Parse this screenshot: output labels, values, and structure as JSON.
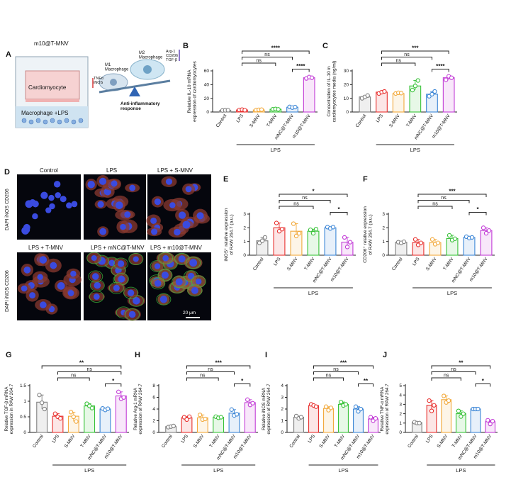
{
  "panel_letters": [
    "A",
    "B",
    "C",
    "D",
    "E",
    "F",
    "G",
    "H",
    "I",
    "J"
  ],
  "panel_a": {
    "title": "m10@T-MNV",
    "top_label": "Cardiomyocyte",
    "bottom_label": "Macrophage +LPS",
    "m1_label": "M1\nMacrophage",
    "m2_label": "M2\nMacrophage",
    "m1_markers": "TNFα\niNOS",
    "m2_markers": "Arg-1\nCD206\nTGF-β",
    "response": "Anti-inflammatory\nresponse"
  },
  "panel_d": {
    "top_titles": [
      "Control",
      "LPS",
      "LPS + S-MNV"
    ],
    "bottom_titles": [
      "LPS + T-MNV",
      "LPS + mNC@T-MNV",
      "LPS + m10@T-MNV"
    ],
    "stain_label": "DAPI iNOS CD206",
    "scale_bar": "20 μm"
  },
  "colors": {
    "Control": "#7f7f7f",
    "LPS": "#e8302e",
    "S-MNV": "#f2a93b",
    "T-MNV": "#37c237",
    "mNC@T-MNV": "#3c86d6",
    "m10@T-MNV": "#c23bd6"
  },
  "chart_data": [
    {
      "id": "B",
      "type": "bar",
      "categories": [
        "Control",
        "LPS",
        "S-MNV",
        "T-MNV",
        "mNC@T-MNV",
        "m10@T-MNV"
      ],
      "values": [
        2.5,
        3,
        3,
        4,
        7,
        50
      ],
      "points": [
        [
          2.3,
          2.5,
          2.6
        ],
        [
          3,
          3.5,
          2.6
        ],
        [
          2.8,
          3.2,
          3.5
        ],
        [
          4,
          4.5,
          3.8
        ],
        [
          7.5,
          6.5,
          7.2
        ],
        [
          49,
          51,
          50
        ]
      ],
      "ylabel": "Relative IL-10 mRNA\nexpression of cardiomyocytes",
      "ylim": [
        0,
        60
      ],
      "yticks": [
        0,
        20,
        40,
        60
      ],
      "group_label": "LPS",
      "brackets": [
        {
          "from": 1,
          "to": 5,
          "text": "****",
          "level": 0
        },
        {
          "from": 1,
          "to": 4,
          "text": "ns",
          "level": 1
        },
        {
          "from": 1,
          "to": 3,
          "text": "ns",
          "level": 2
        },
        {
          "from": 4,
          "to": 5,
          "text": "****",
          "level": 3
        }
      ]
    },
    {
      "id": "C",
      "type": "bar",
      "categories": [
        "Control",
        "LPS",
        "S-MNV",
        "T-MNV",
        "mNC@T-MNV",
        "m10@T-MNV"
      ],
      "values": [
        11,
        14.5,
        13.5,
        19,
        13,
        25
      ],
      "points": [
        [
          10,
          11,
          12
        ],
        [
          13.5,
          14.5,
          15
        ],
        [
          13.5,
          14,
          13.8
        ],
        [
          16,
          19,
          23
        ],
        [
          11.5,
          13,
          15
        ],
        [
          23.5,
          26,
          25
        ]
      ],
      "ylabel": "Concentration of IL-10 in\ncardiomyocytes media (ng/ml)",
      "ylim": [
        0,
        30
      ],
      "yticks": [
        0,
        10,
        20,
        30
      ],
      "group_label": "LPS",
      "brackets": [
        {
          "from": 1,
          "to": 5,
          "text": "***",
          "level": 0
        },
        {
          "from": 1,
          "to": 4,
          "text": "ns",
          "level": 1
        },
        {
          "from": 1,
          "to": 3,
          "text": "ns",
          "level": 2
        },
        {
          "from": 4,
          "to": 5,
          "text": "****",
          "level": 3
        }
      ]
    },
    {
      "id": "E",
      "type": "bar",
      "categories": [
        "Control",
        "LPS",
        "S-MNV",
        "T-MNV",
        "mNC@T-MNV",
        "m10@T-MNV"
      ],
      "values": [
        1.05,
        2.0,
        1.75,
        1.75,
        2.0,
        0.95
      ],
      "points": [
        [
          0.9,
          1.05,
          1.3
        ],
        [
          2.35,
          1.75,
          1.9
        ],
        [
          2.3,
          1.4,
          1.6
        ],
        [
          1.85,
          1.6,
          1.9
        ],
        [
          2.05,
          1.95,
          2.05
        ],
        [
          1.3,
          0.6,
          0.95
        ]
      ],
      "ylabel": "iNOS⁺ relative expression\nof RAW 264.7 (a.u.)",
      "ylim": [
        0,
        3
      ],
      "yticks": [
        0,
        1,
        2,
        3
      ],
      "group_label": "LPS",
      "brackets": [
        {
          "from": 1,
          "to": 5,
          "text": "*",
          "level": 0
        },
        {
          "from": 1,
          "to": 4,
          "text": "ns",
          "level": 1
        },
        {
          "from": 1,
          "to": 3,
          "text": "ns",
          "level": 2
        },
        {
          "from": 4,
          "to": 5,
          "text": "*",
          "level": 3
        }
      ]
    },
    {
      "id": "F",
      "type": "bar",
      "categories": [
        "Control",
        "LPS",
        "S-MNV",
        "T-MNV",
        "mNC@T-MNV",
        "m10@T-MNV"
      ],
      "values": [
        0.95,
        0.92,
        0.92,
        1.22,
        1.3,
        1.8
      ],
      "points": [
        [
          0.95,
          0.9,
          0.98
        ],
        [
          1.15,
          0.75,
          0.9
        ],
        [
          1.15,
          0.8,
          0.9
        ],
        [
          1.45,
          1.1,
          1.2
        ],
        [
          1.35,
          1.25,
          1.3
        ],
        [
          2.0,
          1.6,
          1.8
        ]
      ],
      "ylabel": "CD206⁺ relative expression\nof RAW 264.7 (a.u.)",
      "ylim": [
        0,
        3
      ],
      "yticks": [
        0,
        1,
        2,
        3
      ],
      "group_label": "LPS",
      "brackets": [
        {
          "from": 1,
          "to": 5,
          "text": "***",
          "level": 0
        },
        {
          "from": 1,
          "to": 4,
          "text": "ns",
          "level": 1
        },
        {
          "from": 1,
          "to": 3,
          "text": "ns",
          "level": 2
        },
        {
          "from": 4,
          "to": 5,
          "text": "*",
          "level": 3
        }
      ]
    },
    {
      "id": "G",
      "type": "bar",
      "categories": [
        "Control",
        "LPS",
        "S-MNV",
        "T-MNV",
        "mNC@T-MNV",
        "m10@T-MNV"
      ],
      "values": [
        0.97,
        0.52,
        0.52,
        0.85,
        0.75,
        1.17
      ],
      "points": [
        [
          1.2,
          0.95,
          0.75
        ],
        [
          0.6,
          0.5,
          0.45
        ],
        [
          0.65,
          0.5,
          0.35
        ],
        [
          0.92,
          0.85,
          0.78
        ],
        [
          0.77,
          0.72,
          0.76
        ],
        [
          1.3,
          1.08,
          1.12
        ]
      ],
      "ylabel": "Relative TGF-β mRNA\nexpression in RAW 264.7",
      "ylim": [
        0,
        1.5
      ],
      "yticks": [
        0,
        0.5,
        1.0,
        1.5
      ],
      "group_label": "LPS",
      "brackets": [
        {
          "from": 0,
          "to": 5,
          "text": "**",
          "level": 0
        },
        {
          "from": 1,
          "to": 5,
          "text": "ns",
          "level": 1
        },
        {
          "from": 1,
          "to": 3,
          "text": "ns",
          "level": 2
        },
        {
          "from": 4,
          "to": 5,
          "text": "*",
          "level": 3
        }
      ]
    },
    {
      "id": "H",
      "type": "bar",
      "categories": [
        "Control",
        "LPS",
        "S-MNV",
        "T-MNV",
        "mNC@T-MNV",
        "m10@T-MNV"
      ],
      "values": [
        1.0,
        2.5,
        2.5,
        2.6,
        3.3,
        5.1
      ],
      "points": [
        [
          0.9,
          1.0,
          1.1
        ],
        [
          2.6,
          2.2,
          2.7
        ],
        [
          3.0,
          2.2,
          2.3
        ],
        [
          2.7,
          2.5,
          2.6
        ],
        [
          3.9,
          2.9,
          3.1
        ],
        [
          5.6,
          4.7,
          5.0
        ]
      ],
      "ylabel": "Relative Arg-1 mRNA\nexpression of RAW 264.7",
      "ylim": [
        0,
        8
      ],
      "yticks": [
        0,
        2,
        4,
        6,
        8
      ],
      "group_label": "LPS",
      "brackets": [
        {
          "from": 1,
          "to": 5,
          "text": "***",
          "level": 0
        },
        {
          "from": 1,
          "to": 4,
          "text": "ns",
          "level": 1
        },
        {
          "from": 1,
          "to": 3,
          "text": "ns",
          "level": 2
        },
        {
          "from": 4,
          "to": 5,
          "text": "*",
          "level": 3
        }
      ]
    },
    {
      "id": "I",
      "type": "bar",
      "categories": [
        "Control",
        "LPS",
        "S-MNV",
        "T-MNV",
        "mNC@T-MNV",
        "m10@T-MNV"
      ],
      "values": [
        1.3,
        2.3,
        2.05,
        2.4,
        2.0,
        1.15
      ],
      "points": [
        [
          1.4,
          1.2,
          1.3
        ],
        [
          2.4,
          2.3,
          2.2
        ],
        [
          2.2,
          1.9,
          2.1
        ],
        [
          2.6,
          2.3,
          2.4
        ],
        [
          2.2,
          1.8,
          2.0
        ],
        [
          1.3,
          1.0,
          1.2
        ]
      ],
      "ylabel": "Relative iNOS mRNA\nexpression of RAW 264.7",
      "ylim": [
        0,
        4
      ],
      "yticks": [
        0,
        1,
        2,
        3,
        4
      ],
      "group_label": "LPS",
      "brackets": [
        {
          "from": 1,
          "to": 5,
          "text": "***",
          "level": 0
        },
        {
          "from": 1,
          "to": 4,
          "text": "ns",
          "level": 1
        },
        {
          "from": 1,
          "to": 3,
          "text": "ns",
          "level": 2
        },
        {
          "from": 4,
          "to": 5,
          "text": "**",
          "level": 3
        }
      ]
    },
    {
      "id": "J",
      "type": "bar",
      "categories": [
        "Control",
        "LPS",
        "S-MNV",
        "T-MNV",
        "mNC@T-MNV",
        "m10@T-MNV"
      ],
      "values": [
        1.05,
        2.9,
        3.5,
        2.0,
        2.5,
        1.15
      ],
      "points": [
        [
          1.1,
          1.0,
          1.0
        ],
        [
          3.4,
          2.3,
          2.9
        ],
        [
          3.9,
          3.2,
          3.4
        ],
        [
          2.3,
          1.7,
          2.0
        ],
        [
          2.5,
          2.5,
          2.5
        ],
        [
          1.3,
          0.9,
          1.2
        ]
      ],
      "ylabel": "Relative TNF-α mRNA\nexpression of RAW 264.7",
      "ylim": [
        0,
        5
      ],
      "yticks": [
        0,
        1,
        2,
        3,
        4,
        5
      ],
      "group_label": "LPS",
      "brackets": [
        {
          "from": 1,
          "to": 5,
          "text": "**",
          "level": 0
        },
        {
          "from": 1,
          "to": 4,
          "text": "ns",
          "level": 1
        },
        {
          "from": 1,
          "to": 3,
          "text": "ns",
          "level": 2
        },
        {
          "from": 4,
          "to": 5,
          "text": "*",
          "level": 3
        }
      ]
    }
  ]
}
